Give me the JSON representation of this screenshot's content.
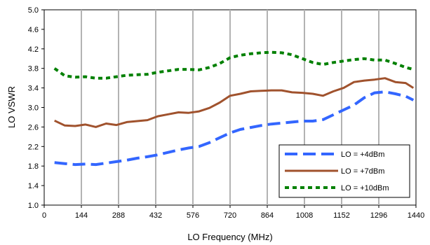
{
  "chart_data": {
    "type": "line",
    "xlabel": "LO Frequency (MHz)",
    "ylabel": "LO VSWR",
    "xlim": [
      0,
      1440
    ],
    "ylim": [
      1.0,
      5.0
    ],
    "x_ticks": [
      "0",
      "144",
      "288",
      "432",
      "576",
      "720",
      "864",
      "1008",
      "1152",
      "1296",
      "1440"
    ],
    "y_ticks": [
      "1.0",
      "1.4",
      "1.8",
      "2.2",
      "2.6",
      "3.0",
      "3.4",
      "3.8",
      "4.2",
      "4.6",
      "5.0"
    ],
    "grid": "vertical",
    "legend_position": "bottom-right",
    "series": [
      {
        "name": "LO = +4dBm",
        "color": "#3366ff",
        "style": "dashed",
        "x": [
          40,
          80,
          120,
          160,
          200,
          240,
          280,
          320,
          360,
          400,
          440,
          480,
          520,
          560,
          600,
          640,
          680,
          720,
          760,
          800,
          840,
          880,
          920,
          960,
          1000,
          1040,
          1080,
          1120,
          1160,
          1200,
          1240,
          1280,
          1320,
          1360,
          1400,
          1430
        ],
        "values": [
          1.87,
          1.85,
          1.83,
          1.84,
          1.83,
          1.86,
          1.89,
          1.92,
          1.96,
          1.99,
          2.03,
          2.08,
          2.13,
          2.17,
          2.2,
          2.28,
          2.38,
          2.48,
          2.55,
          2.59,
          2.63,
          2.66,
          2.68,
          2.7,
          2.72,
          2.72,
          2.75,
          2.85,
          2.95,
          3.05,
          3.2,
          3.3,
          3.32,
          3.28,
          3.23,
          3.15
        ]
      },
      {
        "name": "LO = +7dBm",
        "color": "#a0522d",
        "style": "solid",
        "x": [
          40,
          80,
          120,
          160,
          200,
          240,
          280,
          320,
          360,
          400,
          440,
          480,
          520,
          560,
          600,
          640,
          680,
          720,
          760,
          800,
          840,
          880,
          920,
          960,
          1000,
          1040,
          1080,
          1120,
          1160,
          1200,
          1240,
          1280,
          1320,
          1360,
          1400,
          1430
        ],
        "values": [
          2.73,
          2.63,
          2.62,
          2.65,
          2.6,
          2.67,
          2.64,
          2.7,
          2.72,
          2.74,
          2.82,
          2.86,
          2.9,
          2.89,
          2.92,
          2.99,
          3.1,
          3.24,
          3.28,
          3.33,
          3.34,
          3.35,
          3.35,
          3.31,
          3.3,
          3.28,
          3.24,
          3.33,
          3.4,
          3.52,
          3.55,
          3.57,
          3.6,
          3.52,
          3.5,
          3.4
        ]
      },
      {
        "name": "LO = +10dBm",
        "color": "#008000",
        "style": "dotted",
        "x": [
          40,
          80,
          120,
          160,
          200,
          240,
          280,
          320,
          360,
          400,
          440,
          480,
          520,
          560,
          600,
          640,
          680,
          720,
          760,
          800,
          840,
          880,
          920,
          960,
          1000,
          1040,
          1080,
          1120,
          1160,
          1200,
          1240,
          1280,
          1320,
          1360,
          1400,
          1430
        ],
        "values": [
          3.8,
          3.65,
          3.62,
          3.63,
          3.6,
          3.6,
          3.63,
          3.66,
          3.67,
          3.68,
          3.72,
          3.75,
          3.78,
          3.78,
          3.77,
          3.82,
          3.9,
          4.02,
          4.07,
          4.1,
          4.12,
          4.13,
          4.12,
          4.08,
          4.0,
          3.92,
          3.88,
          3.92,
          3.95,
          3.98,
          4.0,
          3.97,
          3.97,
          3.9,
          3.82,
          3.78
        ]
      }
    ]
  }
}
